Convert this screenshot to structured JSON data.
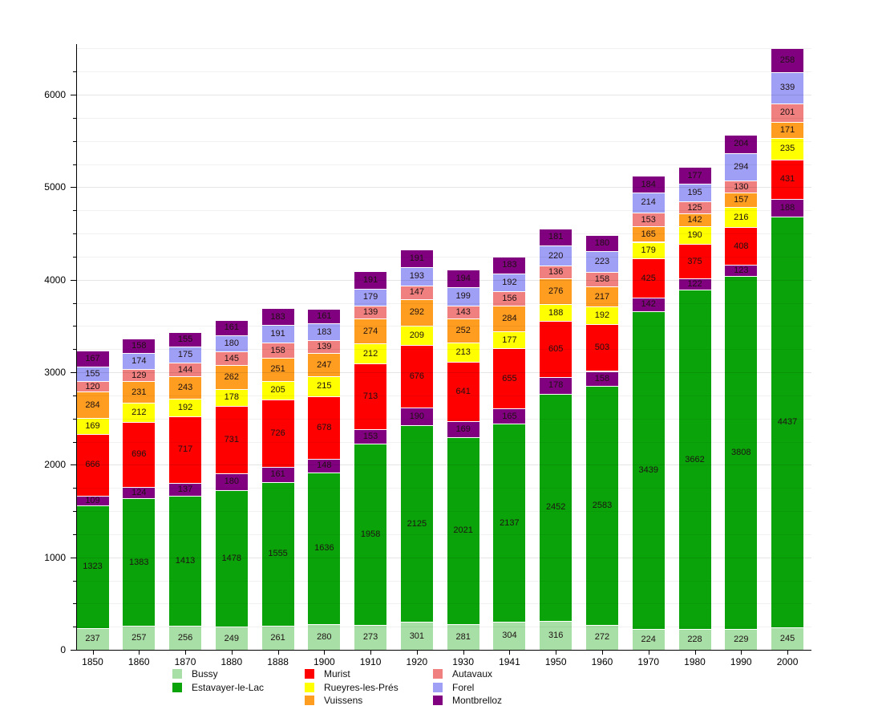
{
  "chart_data": {
    "type": "bar",
    "stacked": true,
    "title": "",
    "xlabel": "",
    "ylabel": "",
    "x_categories": [
      "1850",
      "1860",
      "1870",
      "1880",
      "1888",
      "1900",
      "1910",
      "1920",
      "1930",
      "1941",
      "1950",
      "1960",
      "1970",
      "1980",
      "1990",
      "2000"
    ],
    "yticks": [
      "0",
      "1000",
      "2000",
      "3000",
      "4000",
      "5000",
      "6000"
    ],
    "ytick_values": [
      0,
      1000,
      2000,
      3000,
      4000,
      5000,
      6000
    ],
    "ylim": [
      0,
      6500
    ],
    "grid": "horizontal, light gray, minor every 250",
    "legend_position": "bottom",
    "stack_order": "bottom-to-top",
    "series": [
      {
        "name": "Bussy",
        "color": "#a7dfa7",
        "in_legend": true,
        "values": [
          237,
          257,
          256,
          249,
          261,
          280,
          273,
          301,
          281,
          304,
          316,
          272,
          224,
          228,
          229,
          245
        ]
      },
      {
        "name": "Estavayer-le-Lac",
        "color": "#0aa30a",
        "in_legend": true,
        "values": [
          1323,
          1383,
          1413,
          1478,
          1555,
          1636,
          1958,
          2125,
          2021,
          2137,
          2452,
          2583,
          3439,
          3662,
          3808,
          4437
        ]
      },
      {
        "name": "(unlabeled)",
        "color": "#800080",
        "in_legend": false,
        "values": [
          109,
          124,
          137,
          180,
          161,
          148,
          153,
          190,
          169,
          165,
          178,
          158,
          142,
          122,
          123,
          188
        ]
      },
      {
        "name": "Murist",
        "color": "#fe0000",
        "in_legend": true,
        "values": [
          666,
          696,
          717,
          731,
          726,
          678,
          713,
          676,
          641,
          655,
          605,
          503,
          425,
          375,
          408,
          431
        ]
      },
      {
        "name": "Rueyres-les-Prés",
        "color": "#ffff00",
        "in_legend": true,
        "values": [
          169,
          212,
          192,
          178,
          205,
          215,
          212,
          209,
          213,
          177,
          188,
          192,
          179,
          190,
          216,
          235
        ]
      },
      {
        "name": "Vuissens",
        "color": "#ff9d20",
        "in_legend": true,
        "values": [
          284,
          231,
          243,
          262,
          251,
          247,
          274,
          292,
          252,
          284,
          276,
          217,
          165,
          142,
          157,
          171
        ]
      },
      {
        "name": "Autavaux",
        "color": "#f08080",
        "in_legend": true,
        "values": [
          120,
          129,
          144,
          145,
          158,
          139,
          139,
          147,
          143,
          156,
          136,
          158,
          153,
          125,
          130,
          201
        ]
      },
      {
        "name": "Forel",
        "color": "#9f9ff5",
        "in_legend": true,
        "values": [
          155,
          174,
          175,
          180,
          191,
          183,
          179,
          193,
          199,
          192,
          220,
          223,
          214,
          195,
          294,
          339
        ]
      },
      {
        "name": "Montbrelloz",
        "color": "#800080",
        "in_legend": true,
        "values": [
          167,
          158,
          155,
          161,
          183,
          161,
          191,
          191,
          194,
          183,
          181,
          180,
          184,
          177,
          204,
          258
        ]
      }
    ],
    "legend_columns": [
      [
        {
          "label": "Bussy",
          "color": "#a7dfa7"
        },
        {
          "label": "Estavayer-le-Lac",
          "color": "#0aa30a"
        }
      ],
      [
        {
          "label": "Murist",
          "color": "#fe0000"
        },
        {
          "label": "Rueyres-les-Prés",
          "color": "#ffff00"
        },
        {
          "label": "Vuissens",
          "color": "#ff9d20"
        }
      ],
      [
        {
          "label": "Autavaux",
          "color": "#f08080"
        },
        {
          "label": "Forel",
          "color": "#9f9ff5"
        },
        {
          "label": "Montbrelloz",
          "color": "#800080"
        }
      ]
    ]
  }
}
